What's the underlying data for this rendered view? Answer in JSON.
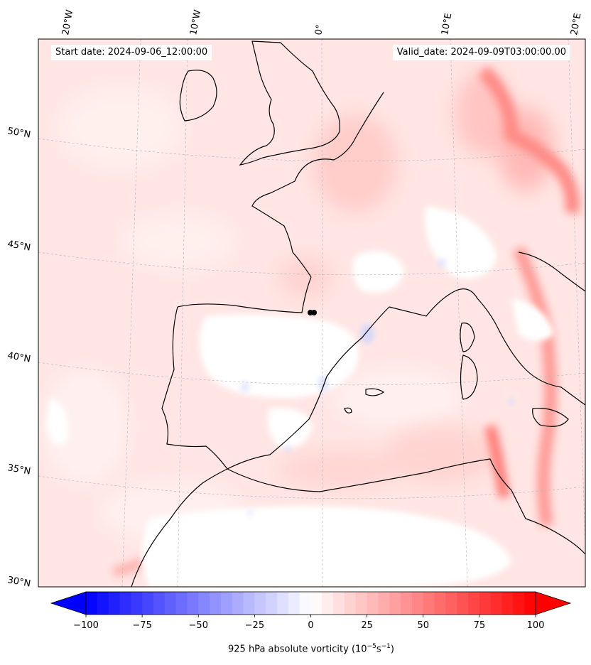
{
  "header": {
    "start_date": "Start date: 2024-09-06_12:00:00",
    "valid_date": "Valid_date: 2024-09-09T03:00:00.00"
  },
  "map": {
    "projection": "conic",
    "region": "Western Europe / Iberia / Western Mediterranean",
    "field": "925 hPa absolute vorticity",
    "longitude_labels": [
      "20°W",
      "10°W",
      "0°",
      "10°E",
      "20°E"
    ],
    "latitude_labels": [
      "50°N",
      "45°N",
      "40°N",
      "35°N",
      "30°N"
    ],
    "gridlines": "dashed, light grey",
    "coastlines": "black",
    "marker": "black dot near 42°N, 1°E",
    "colormap": "bwr"
  },
  "colorbar": {
    "ticks": [
      "−100",
      "−75",
      "−50",
      "−25",
      "0",
      "25",
      "50",
      "75",
      "100"
    ],
    "min": -100,
    "max": 100,
    "levels": 40,
    "extend": "both",
    "label_text": "925 hPa absolute vorticity (10",
    "label_exp1": "−5",
    "label_mid": "s",
    "label_exp2": "−1",
    "label_close": ")"
  },
  "colors": {
    "negative": "#0000ff",
    "zero": "#ffffff",
    "positive": "#ff0000",
    "background_field": "#ffe3e1",
    "coast": "#000000"
  }
}
